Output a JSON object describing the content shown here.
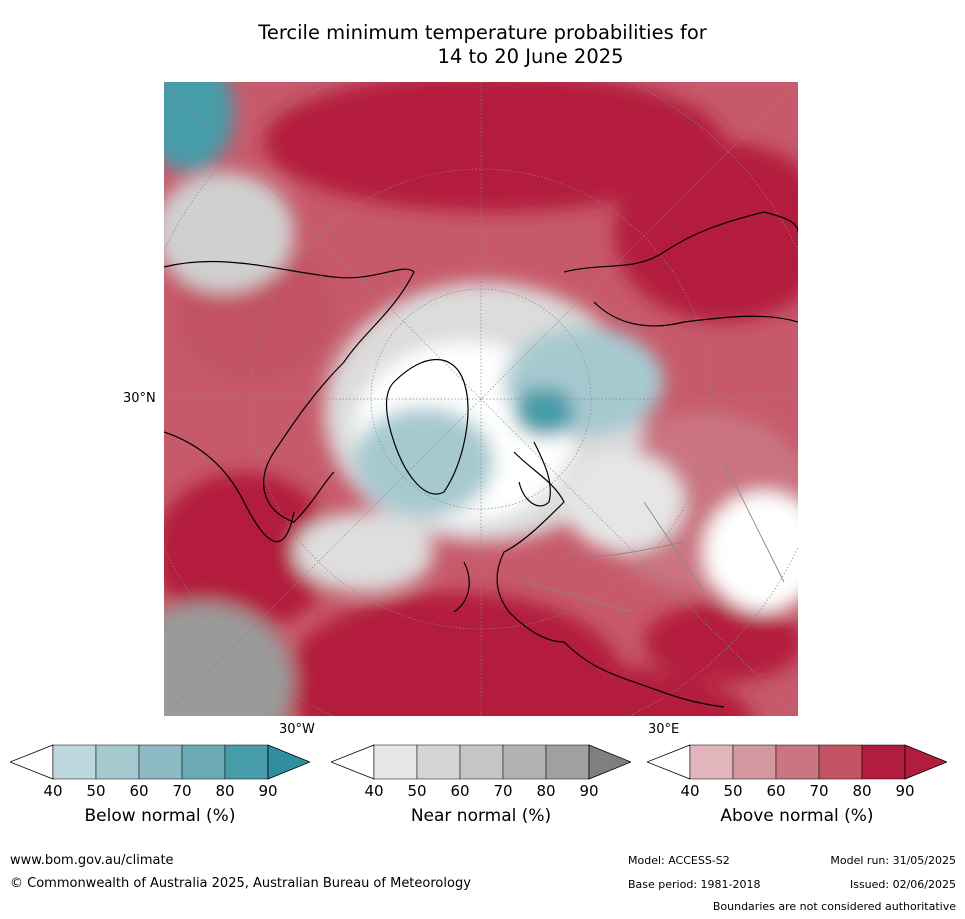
{
  "title": {
    "line1": "Tercile minimum temperature probabilities for",
    "line2": "14 to 20 June 2025"
  },
  "map": {
    "projection": "north-polar-stereographic",
    "lat_label": "30°N",
    "lon_labels": [
      "30°W",
      "30°E"
    ],
    "colors": {
      "above": [
        "#ffffff",
        "#e0b6bc",
        "#d5979f",
        "#cb7581",
        "#c15363",
        "#b31d3d"
      ],
      "near": [
        "#ffffff",
        "#e6e6e6",
        "#d5d5d5",
        "#c5c5c5",
        "#b3b3b3",
        "#a0a0a0",
        "#7f7f7f"
      ],
      "below": [
        "#ffffff",
        "#bdd7dd",
        "#a6c9d0",
        "#8ebbc3",
        "#6baab5",
        "#469ca9",
        "#2f8fa0"
      ]
    }
  },
  "colorbars": [
    {
      "name": "Below normal (%)",
      "ticks": [
        "40",
        "50",
        "60",
        "70",
        "80",
        "90"
      ],
      "colors": [
        "#ffffff",
        "#bdd7dd",
        "#a6c9d0",
        "#8ebbc3",
        "#6baab5",
        "#469ca9",
        "#2f8fa0"
      ]
    },
    {
      "name": "Near normal (%)",
      "ticks": [
        "40",
        "50",
        "60",
        "70",
        "80",
        "90"
      ],
      "colors": [
        "#ffffff",
        "#e6e6e6",
        "#d5d5d5",
        "#c5c5c5",
        "#b3b3b3",
        "#a0a0a0",
        "#7f7f7f"
      ]
    },
    {
      "name": "Above normal (%)",
      "ticks": [
        "40",
        "50",
        "60",
        "70",
        "80",
        "90"
      ],
      "colors": [
        "#ffffff",
        "#e0b6bc",
        "#d5979f",
        "#cb7581",
        "#c15363",
        "#b31d3d",
        "#b31d3d"
      ]
    }
  ],
  "footer": {
    "url": "www.bom.gov.au/climate",
    "copyright": "© Commonwealth of Australia 2025, Australian Bureau of Meteorology",
    "model": "Model: ACCESS-S2",
    "model_run": "Model run: 31/05/2025",
    "base_period": "Base period: 1981-2018",
    "issued": "Issued: 02/06/2025",
    "disclaimer": "Boundaries are not considered authoritative"
  }
}
